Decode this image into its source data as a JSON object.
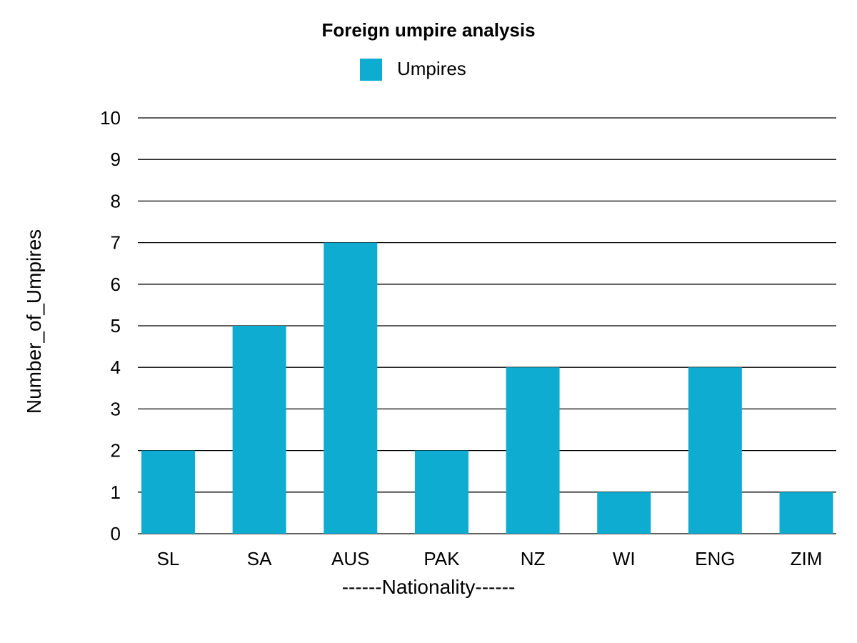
{
  "chart_data": {
    "type": "bar",
    "title": "Foreign umpire analysis",
    "xlabel": "------Nationality------",
    "ylabel": "Number_of_Umpires",
    "categories": [
      "SL",
      "SA",
      "AUS",
      "PAK",
      "NZ",
      "WI",
      "ENG",
      "ZIM"
    ],
    "series": [
      {
        "name": "Umpires",
        "values": [
          2,
          5,
          7,
          2,
          4,
          1,
          4,
          1
        ],
        "color": "#0eacd0"
      }
    ],
    "ylim": [
      0,
      10
    ],
    "yticks": [
      "0",
      "1",
      "2",
      "3",
      "4",
      "5",
      "6",
      "7",
      "8",
      "9",
      "10"
    ],
    "grid": true,
    "legend_position": "top-center"
  }
}
